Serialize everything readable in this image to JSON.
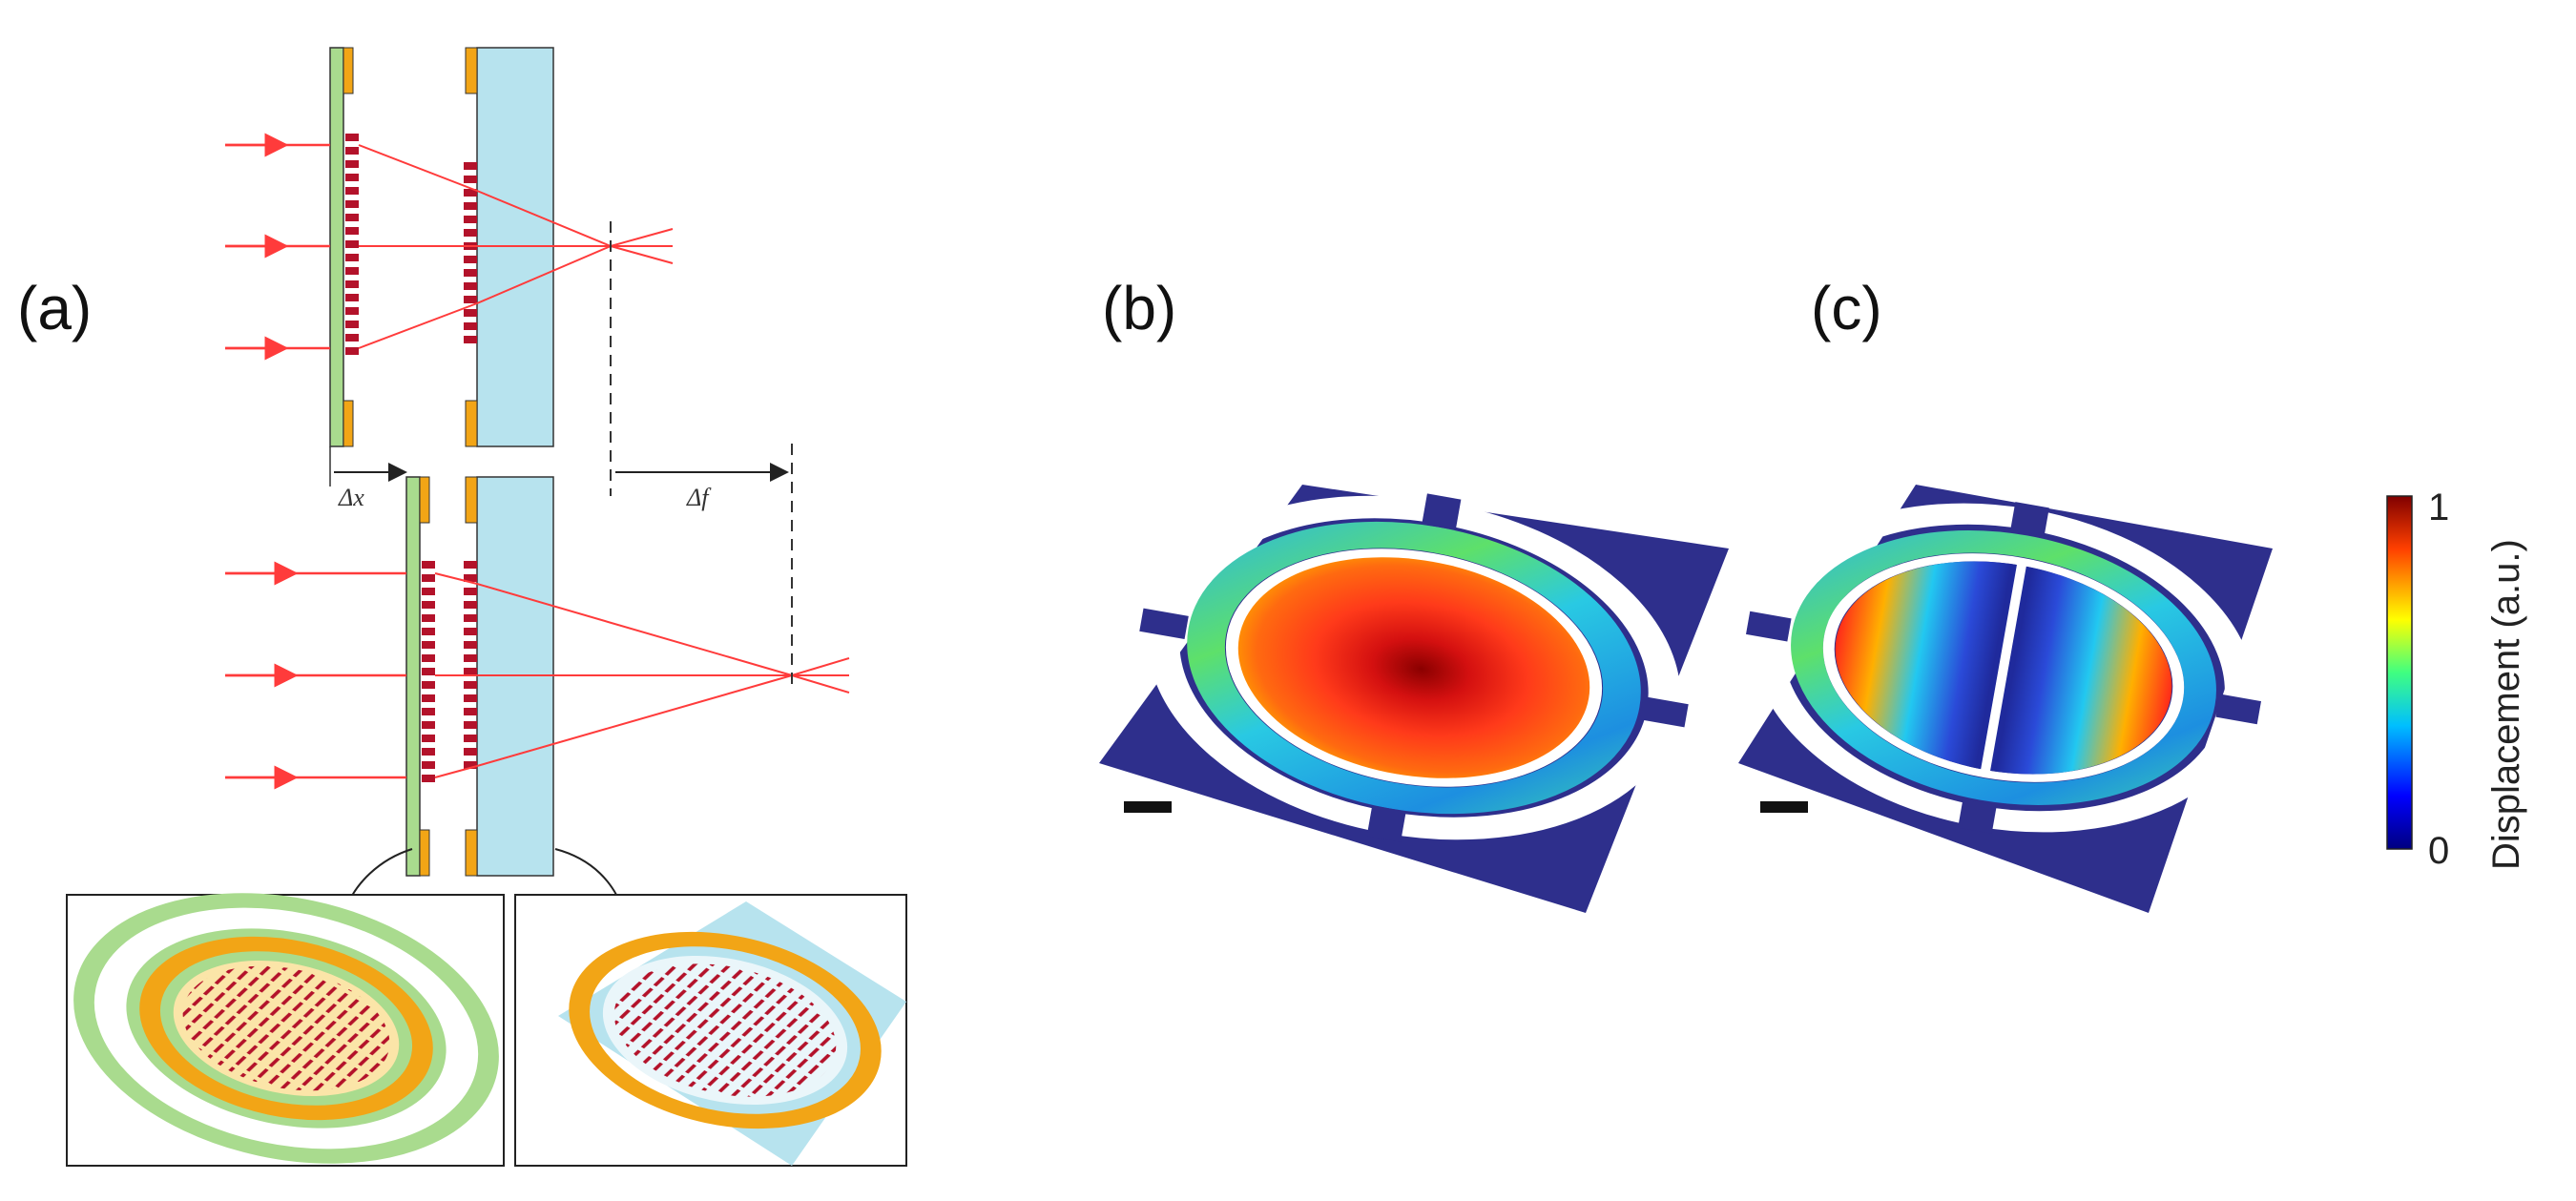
{
  "panels": {
    "a": {
      "label": "(a)",
      "delta_x": "Δx",
      "delta_f": "Δf"
    },
    "b": {
      "label": "(b)"
    },
    "c": {
      "label": "(c)"
    }
  },
  "colorbar": {
    "title": "Displacement (a.u.)",
    "max_label": "1",
    "min_label": "0"
  },
  "colors": {
    "ray": "#ff3b3b",
    "membrane": "#a9db8e",
    "substrate": "#b7e3ee",
    "electrode": "#f2a516",
    "nano_antenna": "#b3122a",
    "sim_background": "#2e2f8c"
  }
}
